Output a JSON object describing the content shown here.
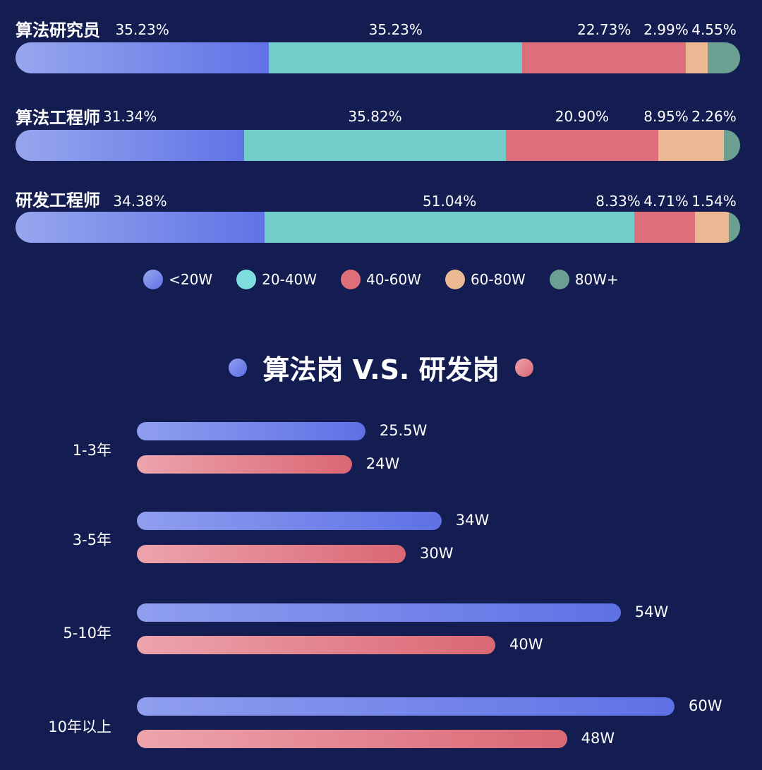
{
  "stack_rows": [
    {
      "label": "算法研究员",
      "values": [
        35.23,
        35.23,
        22.73,
        2.99,
        4.55
      ],
      "labels": [
        "35.23%",
        "35.23%",
        "22.73%",
        "2.99%",
        "4.55%"
      ]
    },
    {
      "label": "算法工程师",
      "values": [
        31.34,
        35.82,
        20.9,
        8.95,
        2.26
      ],
      "labels": [
        "31.34%",
        "35.82%",
        "20.90%",
        "8.95%",
        "2.26%"
      ]
    },
    {
      "label": "研发工程师",
      "values": [
        34.38,
        51.04,
        8.33,
        4.71,
        1.54
      ],
      "labels": [
        "34.38%",
        "51.04%",
        "8.33%",
        "4.71%",
        "1.54%"
      ]
    }
  ],
  "legend": [
    "<20W",
    "20-40W",
    "40-60W",
    "60-80W",
    "80W+"
  ],
  "colors": {
    "band1_start": "#97a6ee",
    "band1_end": "#5f73e6",
    "band2": "#73cdca",
    "band3": "#df6e7b",
    "band4": "#ebb894",
    "band5": "#6a9f91",
    "legend2": "#7fdcde",
    "algo_start": "#8f9eee",
    "algo_end": "#5d71e6",
    "dev_start": "#eda4ad",
    "dev_end": "#da6774"
  },
  "comparison": {
    "title": "算法岗 V.S. 研发岗",
    "groups": [
      {
        "label": "1-3年",
        "algo": 25.5,
        "algo_label": "25.5W",
        "dev": 24,
        "dev_label": "24W"
      },
      {
        "label": "3-5年",
        "algo": 34,
        "algo_label": "34W",
        "dev": 30,
        "dev_label": "30W"
      },
      {
        "label": "5-10年",
        "algo": 54,
        "algo_label": "54W",
        "dev": 40,
        "dev_label": "40W"
      },
      {
        "label": "10年以上",
        "algo": 60,
        "algo_label": "60W",
        "dev": 48,
        "dev_label": "48W"
      }
    ]
  },
  "chart_data": [
    {
      "type": "bar",
      "stacked": true,
      "orientation": "horizontal",
      "categories": [
        "算法研究员",
        "算法工程师",
        "研发工程师"
      ],
      "series": [
        {
          "name": "<20W",
          "values": [
            35.23,
            31.34,
            34.38
          ]
        },
        {
          "name": "20-40W",
          "values": [
            35.23,
            35.82,
            51.04
          ]
        },
        {
          "name": "40-60W",
          "values": [
            22.73,
            20.9,
            8.33
          ]
        },
        {
          "name": "60-80W",
          "values": [
            2.99,
            8.95,
            4.71
          ]
        },
        {
          "name": "80W+",
          "values": [
            4.55,
            2.26,
            1.54
          ]
        }
      ],
      "legend": "bottom"
    },
    {
      "type": "bar",
      "orientation": "horizontal",
      "title": "算法岗 V.S. 研发岗",
      "categories": [
        "1-3年",
        "3-5年",
        "5-10年",
        "10年以上"
      ],
      "series": [
        {
          "name": "算法岗",
          "values": [
            25.5,
            34,
            54,
            60
          ]
        },
        {
          "name": "研发岗",
          "values": [
            24,
            30,
            40,
            48
          ]
        }
      ]
    }
  ]
}
